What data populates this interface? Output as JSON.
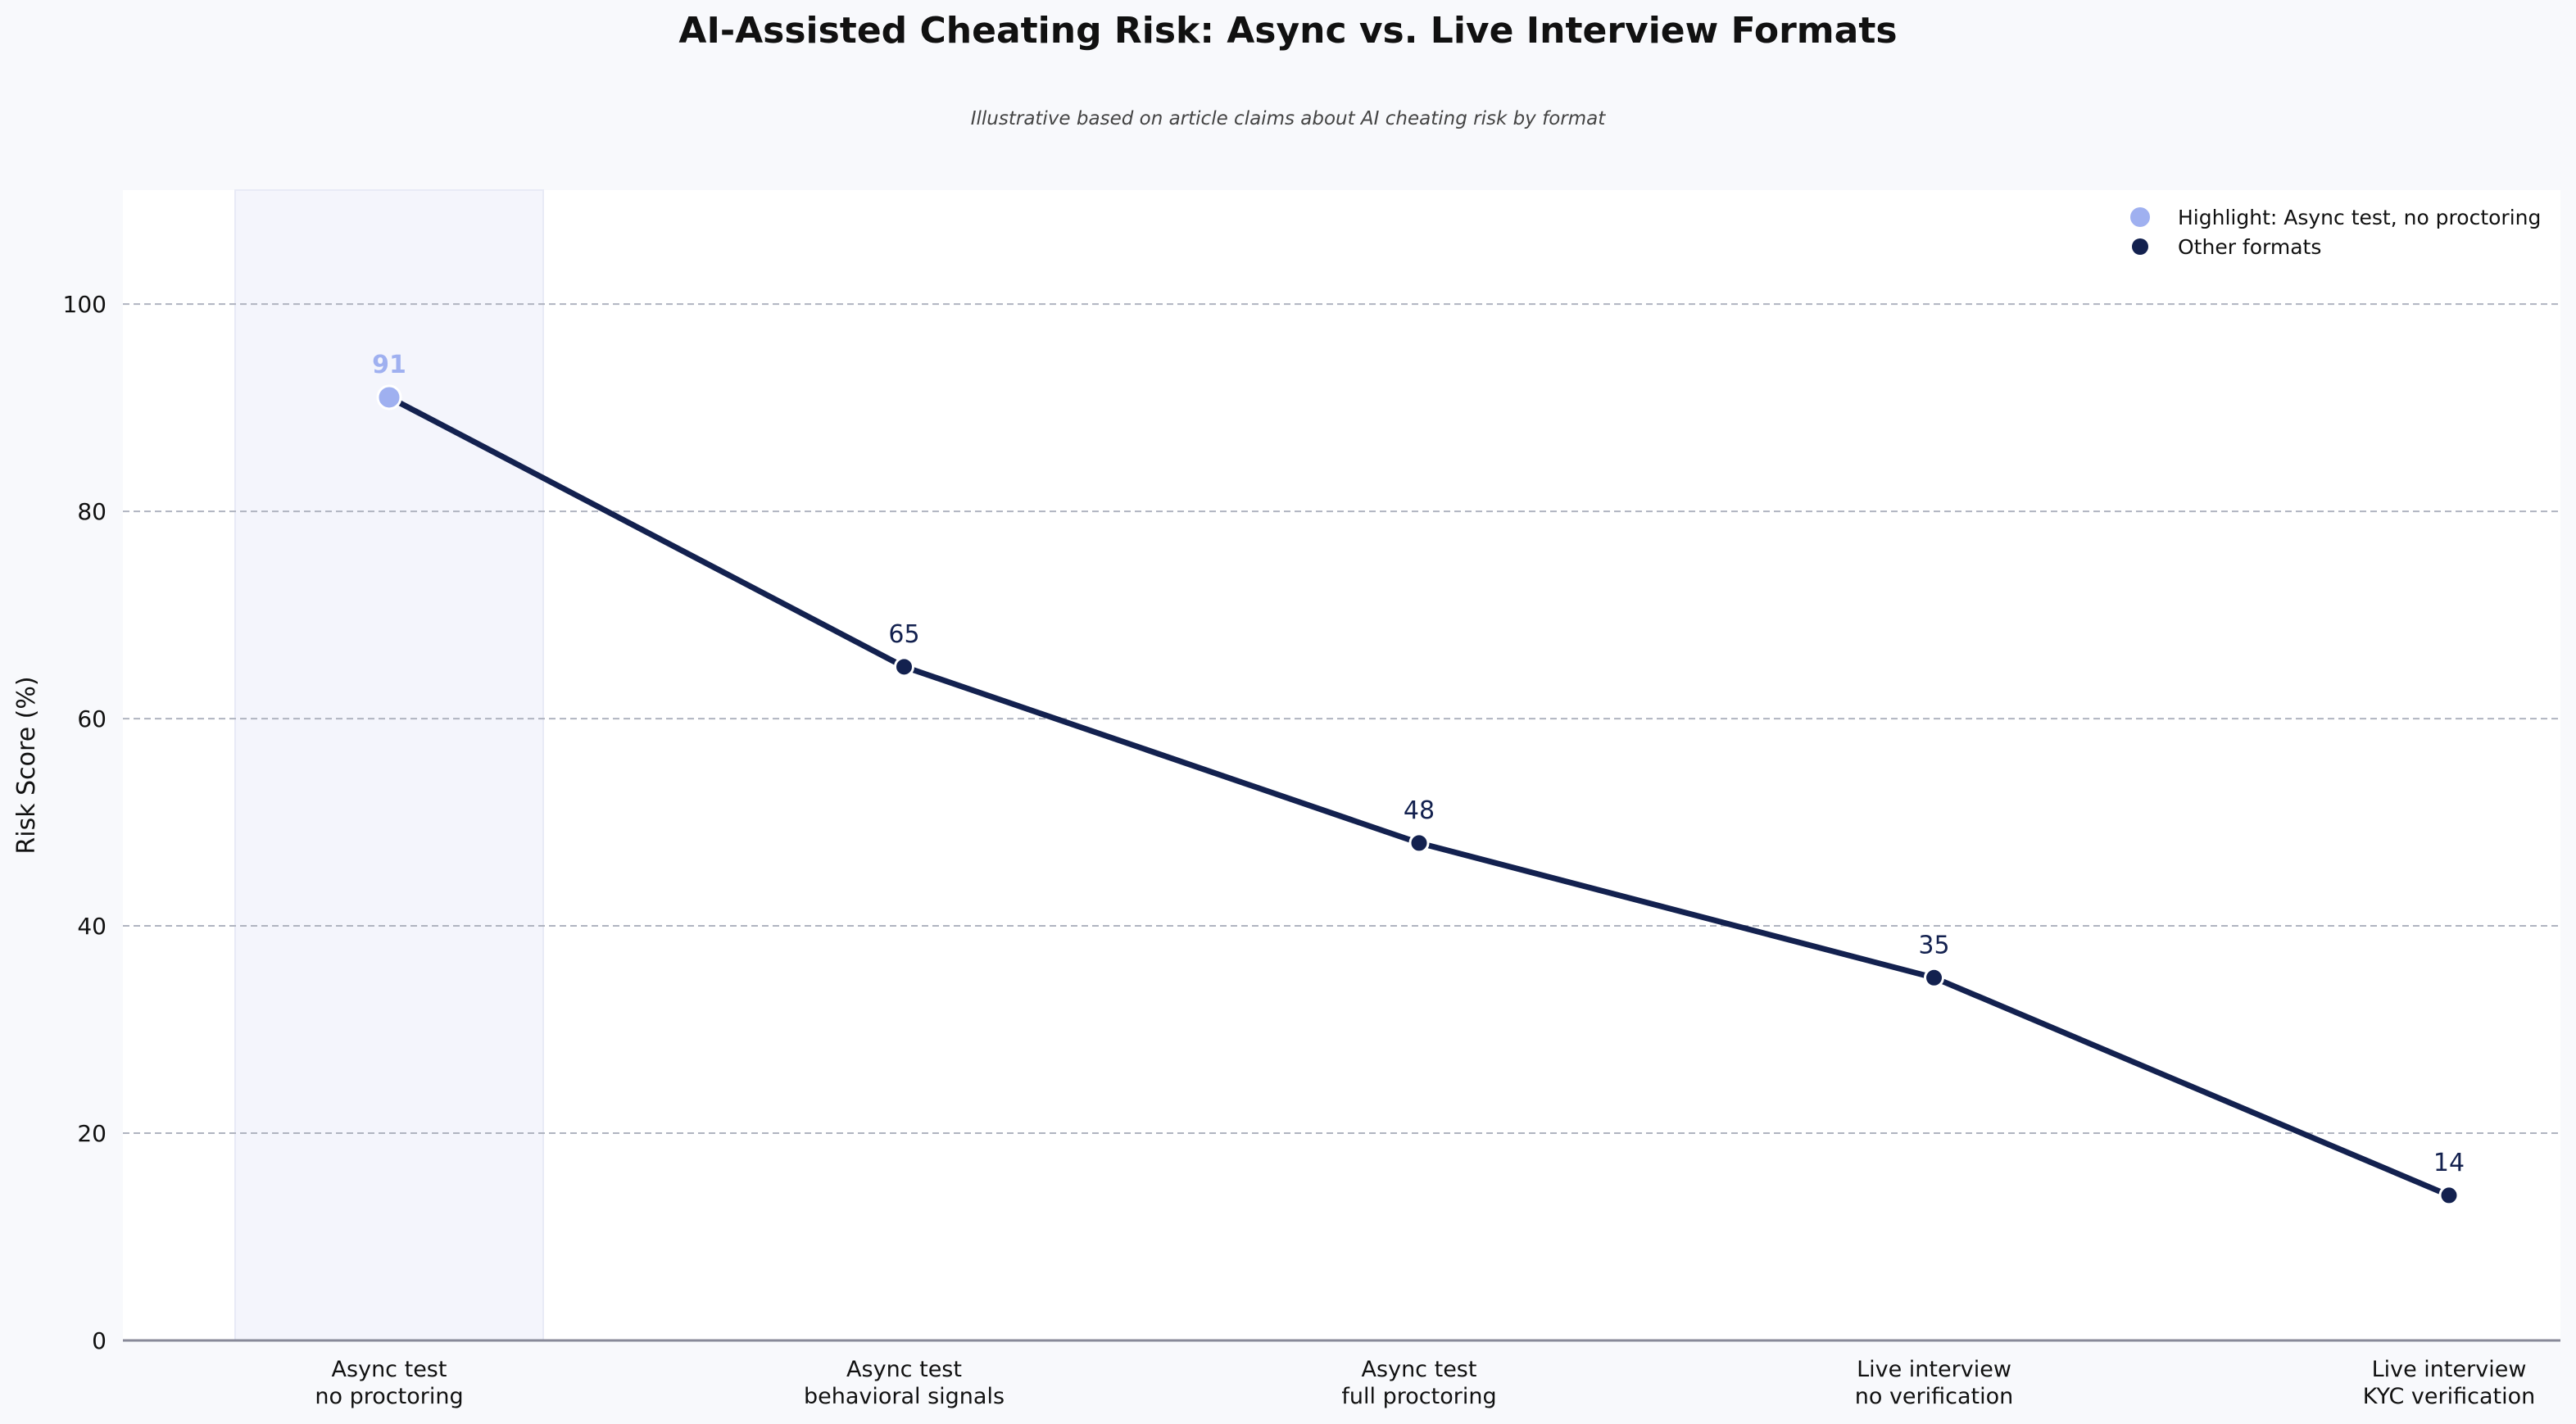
{
  "chart_data": {
    "type": "line",
    "title": "AI-Assisted Cheating Risk: Async vs. Live Interview Formats",
    "subtitle": "Illustrative based on article claims about AI cheating risk by format",
    "xlabel": "",
    "ylabel": "Risk Score (%)",
    "ylim": [
      0,
      111
    ],
    "yticks": [
      0,
      20,
      40,
      60,
      80,
      100
    ],
    "grid": true,
    "legend_position": "top-right",
    "categories": [
      [
        "Async test",
        "no proctoring"
      ],
      [
        "Async test",
        "behavioral signals"
      ],
      [
        "Async test",
        "full proctoring"
      ],
      [
        "Live interview",
        "no verification"
      ],
      [
        "Live interview",
        "KYC verification"
      ]
    ],
    "values": [
      91,
      65,
      48,
      35,
      14
    ],
    "highlight_index": 0,
    "legend": [
      {
        "label": "Highlight: Async test, no proctoring",
        "color": "#9fb0f0"
      },
      {
        "label": "Other formats",
        "color": "#13214f"
      }
    ],
    "colors": {
      "line": "#13214f",
      "highlight": "#9fb0f0",
      "highlight_band": "#f4f5fc",
      "grid": "#b0b4c0",
      "axis": "#888a99",
      "plot_bg": "#ffffff",
      "page_bg": "#f8f9fc"
    }
  }
}
